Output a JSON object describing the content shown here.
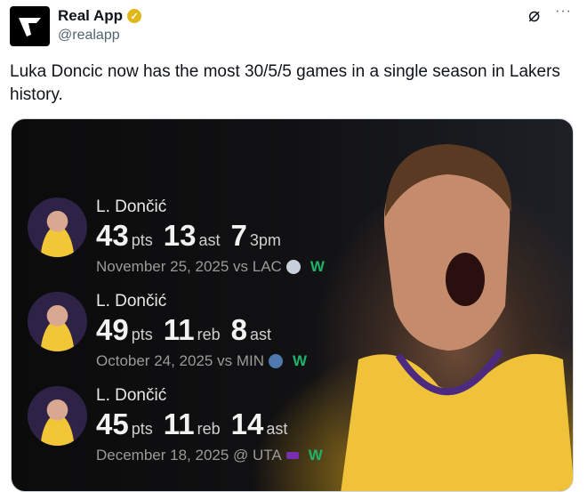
{
  "account": {
    "name": "Real App",
    "handle": "@realapp",
    "verified": true
  },
  "post": {
    "text": "Luka Doncic now has the most 30/5/5 games in a single season in Lakers history."
  },
  "games": [
    {
      "player": "L. Dončić",
      "stats": [
        {
          "value": "43",
          "unit": "pts"
        },
        {
          "value": "13",
          "unit": "ast"
        },
        {
          "value": "7",
          "unit": "3pm"
        }
      ],
      "meta": "November 25, 2025 vs LAC",
      "result": "W",
      "team_color": "#c8d0dc"
    },
    {
      "player": "L. Dončić",
      "stats": [
        {
          "value": "49",
          "unit": "pts"
        },
        {
          "value": "11",
          "unit": "reb"
        },
        {
          "value": "8",
          "unit": "ast"
        }
      ],
      "meta": "October 24, 2025 vs MIN",
      "result": "W",
      "team_color": "#4f7ab0"
    },
    {
      "player": "L. Dončić",
      "stats": [
        {
          "value": "45",
          "unit": "pts"
        },
        {
          "value": "11",
          "unit": "reb"
        },
        {
          "value": "14",
          "unit": "ast"
        }
      ],
      "meta": "December 18, 2025 @ UTA",
      "result": "W",
      "team_color": "#7a2fb0"
    }
  ],
  "colors": {
    "win": "#1db36b",
    "verified": "#e2b719"
  }
}
